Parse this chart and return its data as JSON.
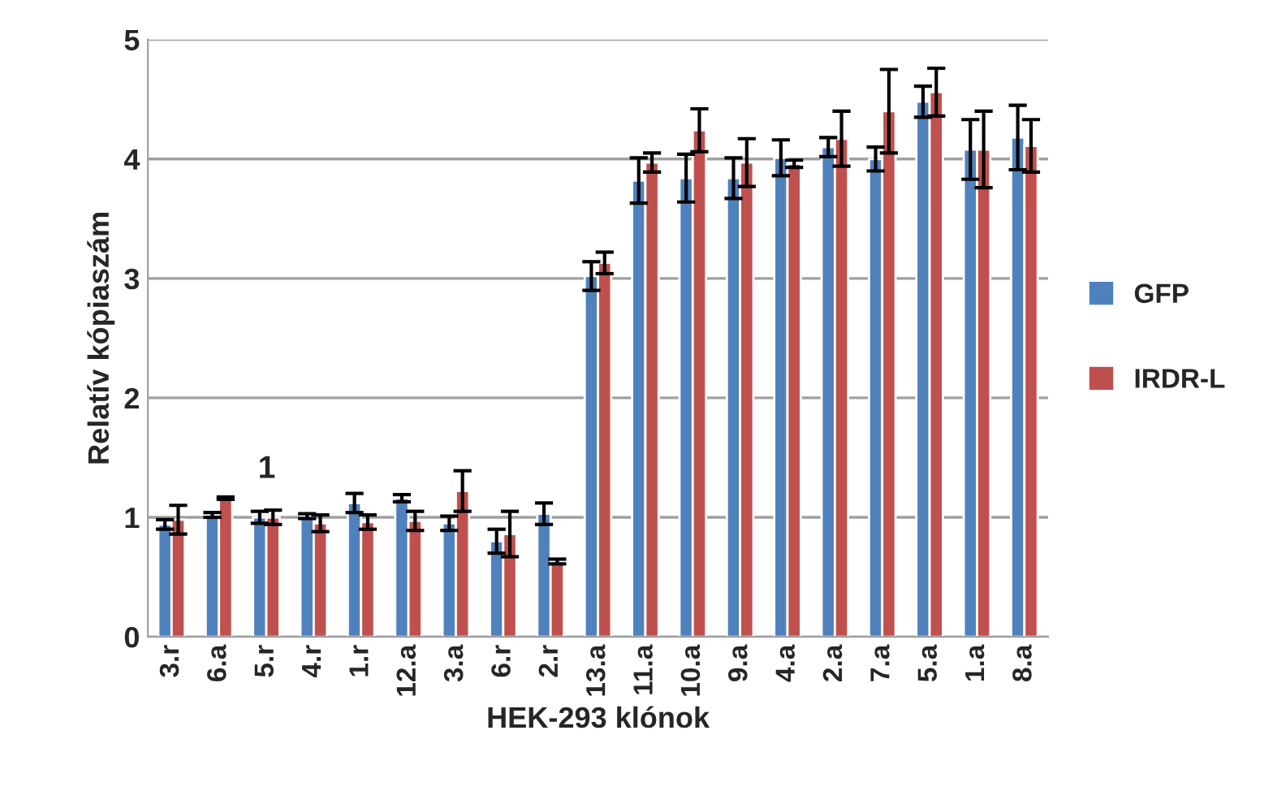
{
  "chart_data": {
    "type": "bar",
    "xlabel": "HEK-293 klónok",
    "ylabel": "Relatív kópiaszám",
    "categories": [
      "3.r",
      "6.a",
      "5.r",
      "4.r",
      "1.r",
      "12.a",
      "3.a",
      "6.r",
      "2.r",
      "13.a",
      "11.a",
      "10.a",
      "9.a",
      "4.a",
      "2.a",
      "7.a",
      "5.a",
      "1.a",
      "8.a"
    ],
    "series": [
      {
        "name": "GFP",
        "color": "#4f81bd",
        "values": [
          0.94,
          1.02,
          1.0,
          1.01,
          1.12,
          1.16,
          0.95,
          0.8,
          1.03,
          3.02,
          3.82,
          3.84,
          3.84,
          4.01,
          4.1,
          4.0,
          4.48,
          4.08,
          4.18
        ],
        "errors": [
          0.04,
          0.02,
          0.05,
          0.02,
          0.08,
          0.03,
          0.06,
          0.1,
          0.09,
          0.12,
          0.19,
          0.2,
          0.17,
          0.15,
          0.08,
          0.1,
          0.13,
          0.25,
          0.27
        ]
      },
      {
        "name": "IRDR-L",
        "color": "#c0504d",
        "values": [
          0.98,
          1.16,
          1.0,
          0.95,
          0.96,
          0.97,
          1.22,
          0.86,
          0.63,
          3.13,
          3.97,
          4.24,
          3.97,
          3.96,
          4.17,
          4.4,
          4.56,
          4.08,
          4.11
        ],
        "errors": [
          0.12,
          0.01,
          0.06,
          0.07,
          0.06,
          0.08,
          0.17,
          0.19,
          0.02,
          0.09,
          0.08,
          0.18,
          0.2,
          0.03,
          0.23,
          0.35,
          0.2,
          0.32,
          0.22
        ]
      }
    ],
    "ylim": [
      0,
      5
    ],
    "yticks": [
      0,
      1,
      2,
      3,
      4,
      5
    ],
    "grid": "y",
    "legend": "right",
    "annotations": [
      "1"
    ]
  }
}
